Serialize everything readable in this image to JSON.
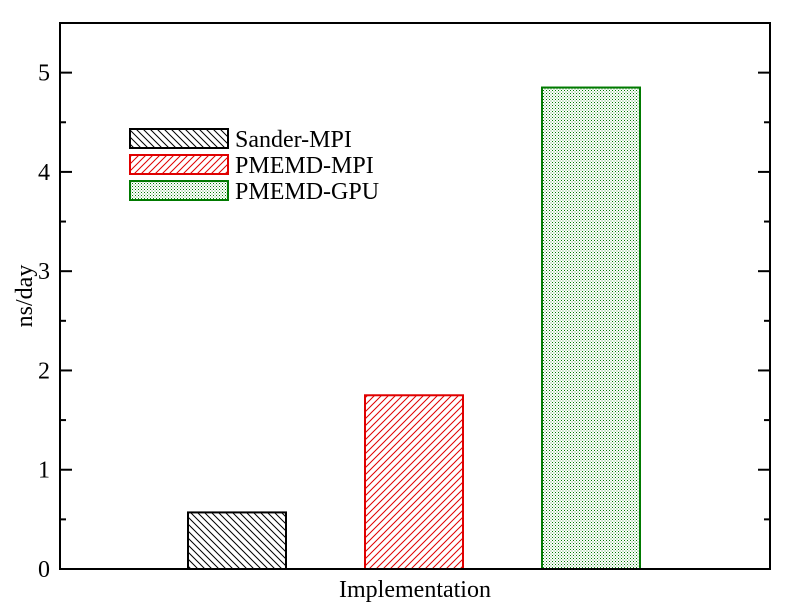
{
  "chart_data": {
    "type": "bar",
    "title": "",
    "xlabel": "Implementation",
    "ylabel": "ns/day",
    "ylim": [
      0,
      5.5
    ],
    "yticks": [
      "0",
      "1",
      "2",
      "3",
      "4",
      "5"
    ],
    "grid": false,
    "legend_position": "top-left",
    "series": [
      {
        "name": "Sander-MPI",
        "value": 0.57,
        "color": "#000000",
        "pattern": "diagonal-down"
      },
      {
        "name": "PMEMD-MPI",
        "value": 1.75,
        "color": "#e00000",
        "pattern": "diagonal-up"
      },
      {
        "name": "PMEMD-GPU",
        "value": 4.85,
        "color": "#007a00",
        "pattern": "dots"
      }
    ]
  }
}
